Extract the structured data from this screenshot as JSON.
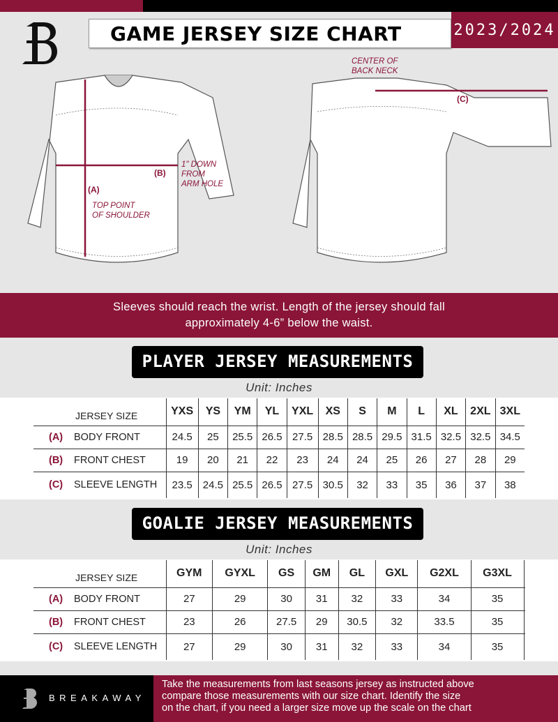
{
  "header": {
    "title": "GAME JERSEY SIZE CHART",
    "season": "2023/2024",
    "logo": "B"
  },
  "annotations": {
    "back_neck": [
      "CENTER OF",
      "BACK NECK"
    ],
    "arm_hole": [
      "1\" DOWN",
      "FROM",
      "ARM HOLE"
    ],
    "shoulder": [
      "TOP POINT",
      "OF SHOULDER"
    ],
    "a": "(A)",
    "b": "(B)",
    "c": "(C)"
  },
  "note": [
    "Sleeves should reach the wrist. Length of the jersey should fall",
    "approximately 4-6” below the waist."
  ],
  "player": {
    "title": "PLAYER JERSEY MEASUREMENTS",
    "unit": "Unit: Inches",
    "size_label": "JERSEY SIZE",
    "sizes": [
      "YXS",
      "YS",
      "YM",
      "YL",
      "YXL",
      "XS",
      "S",
      "M",
      "L",
      "XL",
      "2XL",
      "3XL"
    ],
    "rows": [
      {
        "letter": "(A)",
        "name": "BODY FRONT",
        "values": [
          "24.5",
          "25",
          "25.5",
          "26.5",
          "27.5",
          "28.5",
          "28.5",
          "29.5",
          "31.5",
          "32.5",
          "32.5",
          "34.5"
        ]
      },
      {
        "letter": "(B)",
        "name": "FRONT CHEST",
        "values": [
          "19",
          "20",
          "21",
          "22",
          "23",
          "24",
          "24",
          "25",
          "26",
          "27",
          "28",
          "29"
        ]
      },
      {
        "letter": "(C)",
        "name": "SLEEVE LENGTH",
        "values": [
          "23.5",
          "24.5",
          "25.5",
          "26.5",
          "27.5",
          "30.5",
          "32",
          "33",
          "35",
          "36",
          "37",
          "38"
        ]
      }
    ]
  },
  "goalie": {
    "title": "GOALIE JERSEY MEASUREMENTS",
    "unit": "Unit: Inches",
    "size_label": "JERSEY SIZE",
    "sizes": [
      "GYM",
      "GYXL",
      "GS",
      "GM",
      "GL",
      "GXL",
      "G2XL",
      "G3XL",
      ""
    ],
    "rows": [
      {
        "letter": "(A)",
        "name": "BODY FRONT",
        "values": [
          "27",
          "29",
          "30",
          "31",
          "32",
          "33",
          "34",
          "35",
          ""
        ]
      },
      {
        "letter": "(B)",
        "name": "FRONT CHEST",
        "values": [
          "23",
          "26",
          "27.5",
          "29",
          "30.5",
          "32",
          "33.5",
          "35",
          ""
        ]
      },
      {
        "letter": "(C)",
        "name": "SLEEVE LENGTH",
        "values": [
          "27",
          "29",
          "30",
          "31",
          "32",
          "33",
          "34",
          "35",
          ""
        ]
      }
    ]
  },
  "footer": {
    "brand": "BREAKAWAY",
    "text": [
      "Take the measurements from last seasons jersey as instructed above",
      "compare those measurements  with our size chart. Identify the size",
      "on the chart, if you need a larger size move up the scale on the chart"
    ]
  },
  "colors": {
    "accent": "#8a1538",
    "black": "#000000",
    "background": "#e6e6e7"
  }
}
